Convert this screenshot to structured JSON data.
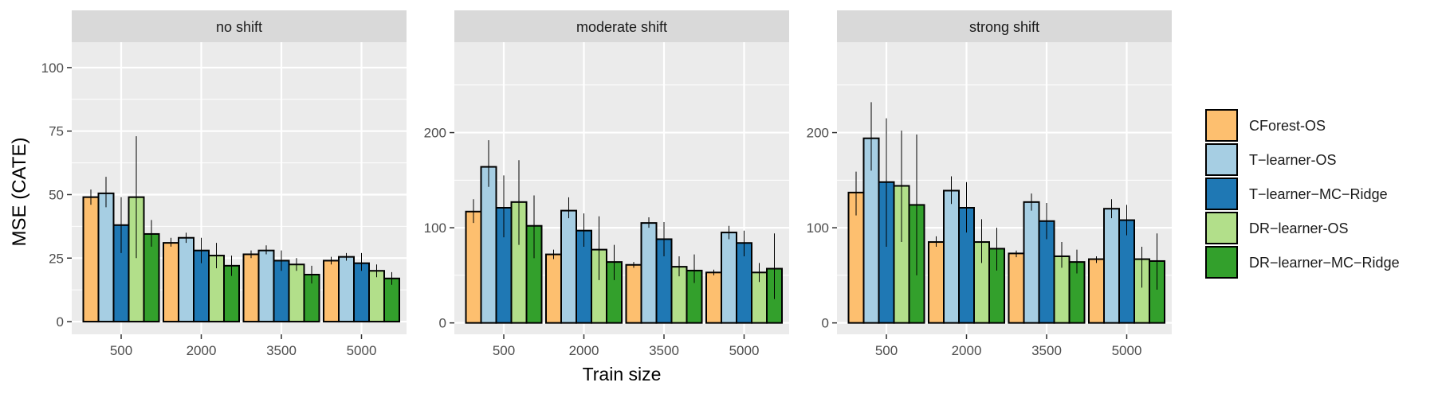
{
  "chart_data": {
    "type": "bar",
    "xlabel": "Train size",
    "ylabel": "MSE (CATE)",
    "categories": [
      "500",
      "2000",
      "3500",
      "5000"
    ],
    "legend": {
      "placement": "right",
      "entries": [
        "CForest-OS",
        "T−learner-OS",
        "T−learner−MC−Ridge",
        "DR−learner-OS",
        "DR−learner−MC−Ridge"
      ]
    },
    "series_colors": [
      "#fdbf6f",
      "#a6cee3",
      "#1f78b4",
      "#b2df8a",
      "#33a02c"
    ],
    "facets": [
      {
        "title": "no shift",
        "ylim": [
          -5,
          110
        ],
        "yticks": [
          0,
          25,
          50,
          75,
          100
        ],
        "series": [
          {
            "name": "CForest-OS",
            "values": [
              49,
              31,
              26.5,
              24
            ],
            "err_low": [
              46,
              29.5,
              25,
              22.5
            ],
            "err_high": [
              52,
              33,
              28,
              25.5
            ]
          },
          {
            "name": "T-learner-OS",
            "values": [
              50.5,
              33,
              28,
              25.5
            ],
            "err_low": [
              45,
              31,
              26.5,
              24
            ],
            "err_high": [
              57,
              35,
              30,
              27
            ]
          },
          {
            "name": "T-learner-MC-Ridge",
            "values": [
              38,
              28,
              24,
              23
            ],
            "err_low": [
              27,
              23,
              20,
              20
            ],
            "err_high": [
              49,
              33,
              28,
              27
            ]
          },
          {
            "name": "DR-learner-OS",
            "values": [
              49,
              26,
              22.5,
              20
            ],
            "err_low": [
              25,
              21,
              20,
              17.5
            ],
            "err_high": [
              73,
              31,
              25,
              22.5
            ]
          },
          {
            "name": "DR-learner-MC-Ridge",
            "values": [
              34.5,
              22,
              18.5,
              17
            ],
            "err_low": [
              29.5,
              18,
              15,
              14.5
            ],
            "err_high": [
              40,
              26,
              22,
              19.5
            ]
          }
        ]
      },
      {
        "title": "moderate shift",
        "ylim": [
          -12,
          295
        ],
        "yticks": [
          0,
          100,
          200
        ],
        "series": [
          {
            "name": "CForest-OS",
            "values": [
              117,
              72,
              61,
              53
            ],
            "err_low": [
              105,
              67,
              58,
              50
            ],
            "err_high": [
              130,
              77,
              64,
              56
            ]
          },
          {
            "name": "T-learner-OS",
            "values": [
              164,
              118,
              105,
              95
            ],
            "err_low": [
              143,
              110,
              100,
              88
            ],
            "err_high": [
              192,
              132,
              111,
              102
            ]
          },
          {
            "name": "T-learner-MC-Ridge",
            "values": [
              121,
              97,
              88,
              84
            ],
            "err_low": [
              90,
              80,
              70,
              70
            ],
            "err_high": [
              155,
              115,
              106,
              97
            ]
          },
          {
            "name": "DR-learner-OS",
            "values": [
              127,
              77,
              59,
              53
            ],
            "err_low": [
              82,
              45,
              49,
              43
            ],
            "err_high": [
              171,
              112,
              70,
              63
            ]
          },
          {
            "name": "DR-learner-MC-Ridge",
            "values": [
              102,
              64,
              55,
              57
            ],
            "err_low": [
              68,
              45,
              42,
              25
            ],
            "err_high": [
              134,
              82,
              72,
              94
            ]
          }
        ]
      },
      {
        "title": "strong shift",
        "ylim": [
          -12,
          295
        ],
        "yticks": [
          0,
          100,
          200
        ],
        "series": [
          {
            "name": "CForest-OS",
            "values": [
              137,
              85,
              73,
              67
            ],
            "err_low": [
              113,
              80,
              69,
              63
            ],
            "err_high": [
              159,
              91,
              76,
              70
            ]
          },
          {
            "name": "T-learner-OS",
            "values": [
              194,
              139,
              127,
              120
            ],
            "err_low": [
              160,
              125,
              118,
              110
            ],
            "err_high": [
              232,
              154,
              136,
              130
            ]
          },
          {
            "name": "T-learner-MC-Ridge",
            "values": [
              148,
              121,
              107,
              108
            ],
            "err_low": [
              80,
              95,
              88,
              92
            ],
            "err_high": [
              215,
              148,
              126,
              124
            ]
          },
          {
            "name": "DR-learner-OS",
            "values": [
              144,
              85,
              70,
              67
            ],
            "err_low": [
              85,
              63,
              58,
              37
            ],
            "err_high": [
              202,
              109,
              85,
              80
            ]
          },
          {
            "name": "DR-learner-MC-Ridge",
            "values": [
              124,
              78,
              64,
              65
            ],
            "err_low": [
              50,
              55,
              52,
              35
            ],
            "err_high": [
              198,
              100,
              77,
              94
            ]
          }
        ]
      }
    ]
  }
}
